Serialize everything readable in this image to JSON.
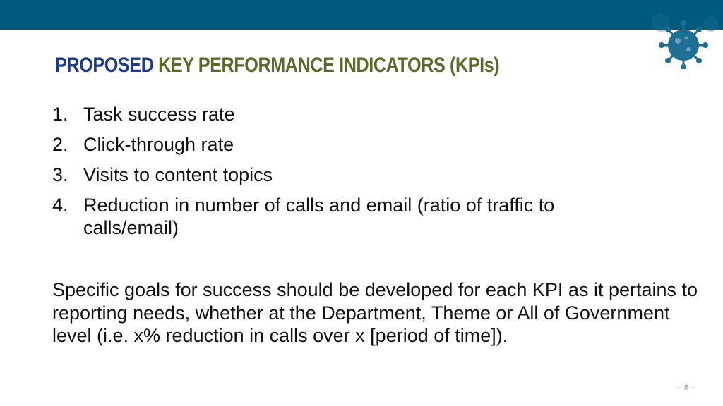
{
  "title": {
    "part1": "PROPOSED",
    "part2": "KEY PERFORMANCE INDICATORS (KPIs)"
  },
  "kpis": [
    {
      "num": "1.",
      "text": "Task success rate"
    },
    {
      "num": "2.",
      "text": "Click-through rate"
    },
    {
      "num": "3.",
      "text": "Visits to content topics"
    },
    {
      "num": "4.",
      "text": "Reduction in number of calls and email (ratio of traffic to calls/email)"
    }
  ],
  "paragraph": "Specific goals for success should be developed for each KPI as it pertains to reporting needs, whether at the Department, Theme or All of Government level (i.e. x% reduction in calls over x [period of time]).",
  "footer": {
    "page_number": "– 8 –"
  },
  "colors": {
    "top_bar": "#005a7e",
    "title_primary": "#1f3a8a",
    "title_secondary": "#5b6a2b",
    "virus": "#1e6f95"
  },
  "icons": {
    "decoration": "virus-icon"
  }
}
